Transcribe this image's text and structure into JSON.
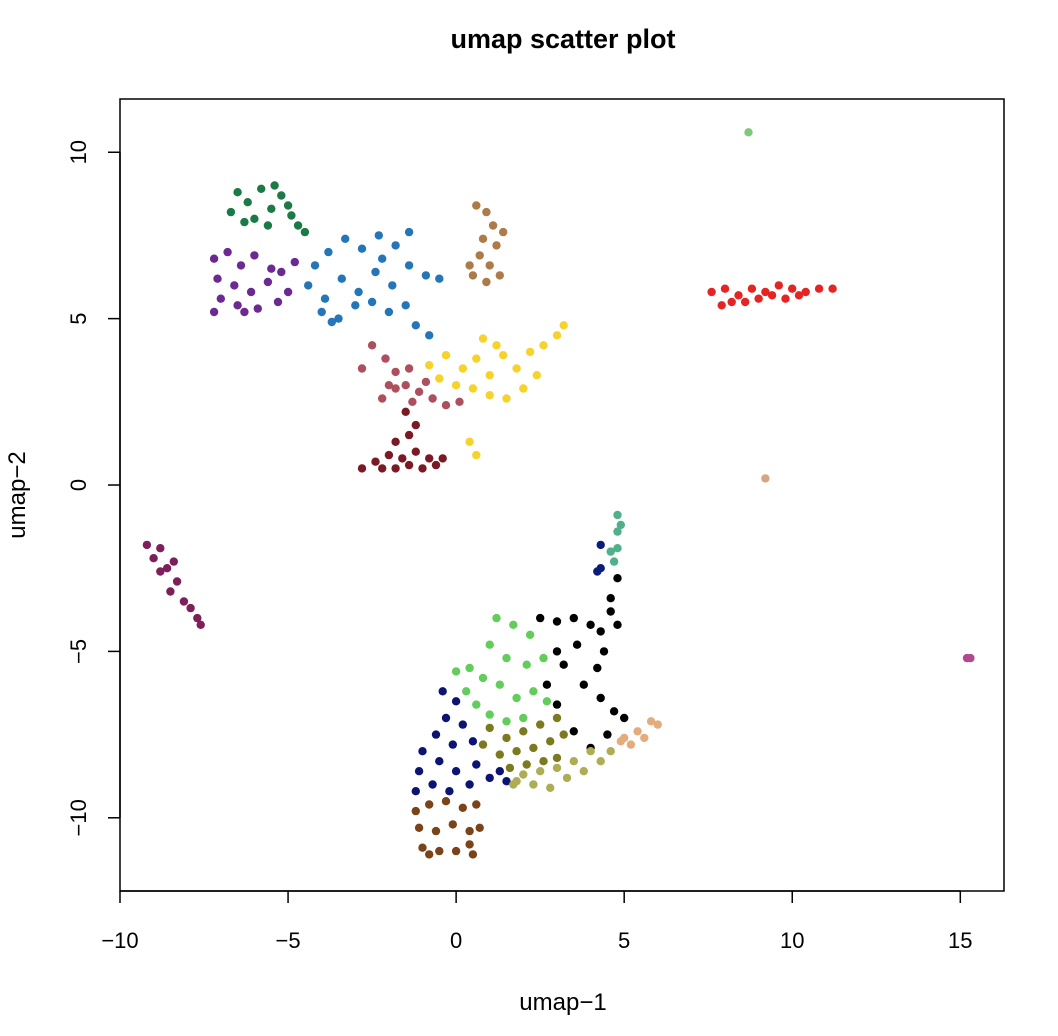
{
  "chart_data": {
    "type": "scatter",
    "title": "umap scatter plot",
    "xlabel": "umap−1",
    "ylabel": "umap−2",
    "xlim": [
      -10,
      16.3
    ],
    "ylim": [
      -12.2,
      11.6
    ],
    "xticks": [
      {
        "value": -10,
        "label": "−10"
      },
      {
        "value": -5,
        "label": "−5"
      },
      {
        "value": 0,
        "label": "0"
      },
      {
        "value": 5,
        "label": "5"
      },
      {
        "value": 10,
        "label": "10"
      },
      {
        "value": 15,
        "label": "15"
      }
    ],
    "yticks": [
      {
        "value": -10,
        "label": "−10"
      },
      {
        "value": -5,
        "label": "−5"
      },
      {
        "value": 0,
        "label": "0"
      },
      {
        "value": 5,
        "label": "5"
      },
      {
        "value": 10,
        "label": "10"
      }
    ],
    "grid": false,
    "legend": "none",
    "clusters": [
      {
        "color": "#1b7a45",
        "points": [
          [
            -6.5,
            8.8
          ],
          [
            -6.2,
            8.5
          ],
          [
            -5.8,
            8.9
          ],
          [
            -5.5,
            8.3
          ],
          [
            -5.2,
            8.7
          ],
          [
            -4.9,
            8.1
          ],
          [
            -6.7,
            8.2
          ],
          [
            -6.0,
            8.0
          ],
          [
            -5.6,
            7.8
          ],
          [
            -5.0,
            8.4
          ],
          [
            -4.7,
            7.8
          ],
          [
            -6.3,
            7.9
          ],
          [
            -5.4,
            9.0
          ],
          [
            -4.5,
            7.6
          ]
        ]
      },
      {
        "color": "#6a2a92",
        "points": [
          [
            -7.2,
            6.8
          ],
          [
            -6.8,
            7.0
          ],
          [
            -6.4,
            6.6
          ],
          [
            -6.0,
            6.9
          ],
          [
            -5.5,
            6.5
          ],
          [
            -7.1,
            6.2
          ],
          [
            -6.6,
            6.0
          ],
          [
            -6.1,
            5.8
          ],
          [
            -5.6,
            6.1
          ],
          [
            -7.0,
            5.6
          ],
          [
            -6.5,
            5.4
          ],
          [
            -5.9,
            5.3
          ],
          [
            -5.3,
            5.5
          ],
          [
            -7.2,
            5.2
          ],
          [
            -6.3,
            5.2
          ],
          [
            -5.2,
            6.4
          ],
          [
            -4.8,
            6.7
          ],
          [
            -5.0,
            5.8
          ]
        ]
      },
      {
        "color": "#2476b8",
        "points": [
          [
            -4.2,
            6.6
          ],
          [
            -3.8,
            7.0
          ],
          [
            -3.3,
            7.4
          ],
          [
            -2.8,
            7.1
          ],
          [
            -2.3,
            7.5
          ],
          [
            -1.8,
            7.2
          ],
          [
            -1.4,
            7.6
          ],
          [
            -4.4,
            6.0
          ],
          [
            -3.9,
            5.6
          ],
          [
            -3.4,
            6.2
          ],
          [
            -2.9,
            5.8
          ],
          [
            -2.4,
            6.4
          ],
          [
            -1.9,
            6.0
          ],
          [
            -1.4,
            6.6
          ],
          [
            -0.9,
            6.3
          ],
          [
            -0.5,
            6.2
          ],
          [
            -4.0,
            5.2
          ],
          [
            -3.5,
            5.0
          ],
          [
            -3.0,
            5.4
          ],
          [
            -2.5,
            5.5
          ],
          [
            -2.0,
            5.2
          ],
          [
            -1.5,
            5.4
          ],
          [
            -1.2,
            4.8
          ],
          [
            -0.8,
            4.5
          ],
          [
            -3.7,
            4.9
          ],
          [
            -2.2,
            6.8
          ]
        ]
      },
      {
        "color": "#ac7b47",
        "points": [
          [
            0.6,
            8.4
          ],
          [
            0.9,
            8.2
          ],
          [
            1.1,
            7.8
          ],
          [
            0.8,
            7.4
          ],
          [
            1.2,
            7.2
          ],
          [
            0.7,
            6.9
          ],
          [
            1.0,
            6.6
          ],
          [
            0.5,
            6.3
          ],
          [
            0.9,
            6.1
          ],
          [
            1.3,
            6.3
          ],
          [
            0.4,
            6.6
          ],
          [
            1.4,
            7.6
          ]
        ]
      },
      {
        "color": "#e52424",
        "points": [
          [
            7.6,
            5.8
          ],
          [
            8.0,
            5.9
          ],
          [
            8.4,
            5.7
          ],
          [
            8.8,
            5.9
          ],
          [
            9.2,
            5.8
          ],
          [
            9.6,
            6.0
          ],
          [
            10.0,
            5.9
          ],
          [
            10.4,
            5.8
          ],
          [
            10.8,
            5.9
          ],
          [
            11.2,
            5.9
          ],
          [
            8.2,
            5.5
          ],
          [
            8.6,
            5.5
          ],
          [
            9.0,
            5.6
          ],
          [
            9.4,
            5.7
          ],
          [
            9.8,
            5.6
          ],
          [
            7.9,
            5.4
          ],
          [
            10.2,
            5.7
          ]
        ]
      },
      {
        "color": "#7fc77b",
        "points": [
          [
            8.7,
            10.6
          ]
        ]
      },
      {
        "color": "#f6d32b",
        "points": [
          [
            -0.8,
            3.6
          ],
          [
            -0.3,
            3.9
          ],
          [
            0.2,
            3.5
          ],
          [
            0.6,
            3.8
          ],
          [
            1.0,
            3.3
          ],
          [
            1.4,
            3.9
          ],
          [
            1.8,
            3.5
          ],
          [
            2.2,
            4.0
          ],
          [
            2.6,
            4.2
          ],
          [
            3.0,
            4.5
          ],
          [
            3.2,
            4.8
          ],
          [
            0.0,
            3.0
          ],
          [
            0.5,
            2.9
          ],
          [
            1.0,
            2.7
          ],
          [
            1.5,
            2.6
          ],
          [
            2.0,
            2.9
          ],
          [
            2.4,
            3.3
          ],
          [
            1.2,
            4.2
          ],
          [
            0.8,
            4.4
          ],
          [
            -0.5,
            3.2
          ],
          [
            0.6,
            0.9
          ],
          [
            0.4,
            1.3
          ]
        ]
      },
      {
        "color": "#ad4f5d",
        "points": [
          [
            -2.5,
            4.2
          ],
          [
            -2.1,
            3.8
          ],
          [
            -1.8,
            3.4
          ],
          [
            -1.5,
            3.0
          ],
          [
            -1.1,
            2.8
          ],
          [
            -0.7,
            2.6
          ],
          [
            -0.3,
            2.4
          ],
          [
            0.1,
            2.5
          ],
          [
            -2.0,
            3.0
          ],
          [
            -1.4,
            3.5
          ],
          [
            -2.8,
            3.5
          ],
          [
            -2.2,
            2.6
          ],
          [
            -1.8,
            2.9
          ],
          [
            -1.3,
            2.5
          ],
          [
            -0.9,
            3.1
          ]
        ]
      },
      {
        "color": "#7b1a25",
        "points": [
          [
            -2.8,
            0.5
          ],
          [
            -2.4,
            0.7
          ],
          [
            -2.0,
            0.9
          ],
          [
            -1.6,
            0.8
          ],
          [
            -1.2,
            1.0
          ],
          [
            -0.8,
            0.8
          ],
          [
            -0.4,
            0.8
          ],
          [
            -2.2,
            0.5
          ],
          [
            -1.8,
            0.5
          ],
          [
            -1.4,
            0.6
          ],
          [
            -1.0,
            0.5
          ],
          [
            -0.6,
            0.6
          ],
          [
            -1.8,
            1.3
          ],
          [
            -1.4,
            1.5
          ],
          [
            -1.5,
            2.2
          ],
          [
            -1.2,
            1.8
          ]
        ]
      },
      {
        "color": "#d8a581",
        "points": [
          [
            9.2,
            0.2
          ]
        ]
      },
      {
        "color": "#7d1f5a",
        "points": [
          [
            -9.2,
            -1.8
          ],
          [
            -9.0,
            -2.2
          ],
          [
            -8.8,
            -2.6
          ],
          [
            -8.6,
            -2.5
          ],
          [
            -8.3,
            -2.9
          ],
          [
            -8.5,
            -3.2
          ],
          [
            -8.1,
            -3.5
          ],
          [
            -7.9,
            -3.7
          ],
          [
            -7.7,
            -4.0
          ],
          [
            -7.6,
            -4.2
          ],
          [
            -8.8,
            -1.9
          ],
          [
            -8.4,
            -2.3
          ]
        ]
      },
      {
        "color": "#4fb089",
        "points": [
          [
            4.8,
            -0.9
          ],
          [
            4.8,
            -1.4
          ],
          [
            4.8,
            -1.9
          ],
          [
            4.7,
            -2.3
          ],
          [
            4.9,
            -1.2
          ],
          [
            4.6,
            -2.0
          ]
        ]
      },
      {
        "color": "#0b1d7a",
        "points": [
          [
            4.3,
            -1.8
          ],
          [
            4.3,
            -2.5
          ],
          [
            4.2,
            -2.6
          ]
        ]
      },
      {
        "color": "#de da7a",
        "points": [
          [
            2.5,
            -4.0
          ],
          [
            3.0,
            -4.1
          ],
          [
            3.5,
            -4.0
          ],
          [
            4.0,
            -4.2
          ],
          [
            4.3,
            -4.4
          ],
          [
            4.4,
            -5.0
          ],
          [
            4.2,
            -5.5
          ],
          [
            3.8,
            -6.0
          ],
          [
            4.3,
            -6.4
          ],
          [
            4.7,
            -6.8
          ],
          [
            5.0,
            -7.0
          ],
          [
            4.5,
            -7.5
          ],
          [
            4.0,
            -7.9
          ],
          [
            3.5,
            -7.4
          ],
          [
            3.0,
            -6.6
          ],
          [
            2.7,
            -6.0
          ],
          [
            3.2,
            -5.4
          ],
          [
            3.6,
            -4.8
          ],
          [
            4.6,
            -3.8
          ],
          [
            4.8,
            -2.8
          ],
          [
            4.6,
            -3.4
          ],
          [
            3.0,
            -5.0
          ],
          [
            4.8,
            -4.2
          ]
        ]
      },
      {
        "color": "#62cd5b",
        "points": [
          [
            1.2,
            -4.0
          ],
          [
            1.7,
            -4.2
          ],
          [
            2.2,
            -4.5
          ],
          [
            1.0,
            -4.8
          ],
          [
            1.5,
            -5.2
          ],
          [
            2.1,
            -5.4
          ],
          [
            2.6,
            -5.2
          ],
          [
            0.4,
            -5.5
          ],
          [
            0.8,
            -5.8
          ],
          [
            1.3,
            -6.0
          ],
          [
            1.8,
            -6.4
          ],
          [
            2.3,
            -6.2
          ],
          [
            2.7,
            -6.5
          ],
          [
            0.0,
            -5.6
          ],
          [
            0.6,
            -6.6
          ],
          [
            1.0,
            -6.9
          ],
          [
            1.5,
            -7.1
          ],
          [
            2.0,
            -7.0
          ],
          [
            0.3,
            -6.2
          ]
        ]
      },
      {
        "color": "#e2ac7d",
        "points": [
          [
            5.0,
            -7.6
          ],
          [
            5.4,
            -7.4
          ],
          [
            5.8,
            -7.1
          ],
          [
            6.0,
            -7.2
          ],
          [
            5.6,
            -7.6
          ],
          [
            5.2,
            -7.8
          ],
          [
            4.9,
            -7.7
          ]
        ]
      },
      {
        "color": "#0b1472",
        "points": [
          [
            -0.4,
            -6.2
          ],
          [
            0.0,
            -6.5
          ],
          [
            -0.3,
            -7.0
          ],
          [
            0.2,
            -7.2
          ],
          [
            -0.6,
            -7.5
          ],
          [
            -0.1,
            -7.8
          ],
          [
            0.5,
            -7.7
          ],
          [
            -1.0,
            -8.0
          ],
          [
            -0.5,
            -8.3
          ],
          [
            0.0,
            -8.6
          ],
          [
            0.6,
            -8.4
          ],
          [
            1.0,
            -8.8
          ],
          [
            1.3,
            -8.6
          ],
          [
            -1.1,
            -8.6
          ],
          [
            -1.2,
            -9.2
          ],
          [
            -0.7,
            -9.0
          ],
          [
            -0.2,
            -9.2
          ],
          [
            0.4,
            -9.0
          ],
          [
            1.5,
            -8.9
          ]
        ]
      },
      {
        "color": "#7c7a1e",
        "points": [
          [
            1.0,
            -7.3
          ],
          [
            1.5,
            -7.6
          ],
          [
            2.0,
            -7.4
          ],
          [
            2.5,
            -7.2
          ],
          [
            3.0,
            -7.0
          ],
          [
            0.8,
            -7.8
          ],
          [
            1.3,
            -8.1
          ],
          [
            1.8,
            -8.0
          ],
          [
            2.3,
            -7.9
          ],
          [
            2.8,
            -7.7
          ],
          [
            3.2,
            -7.5
          ],
          [
            1.6,
            -8.5
          ],
          [
            2.1,
            -8.4
          ],
          [
            2.6,
            -8.3
          ],
          [
            3.0,
            -8.2
          ]
        ]
      },
      {
        "color": "#aead54",
        "points": [
          [
            1.8,
            -8.9
          ],
          [
            2.3,
            -9.0
          ],
          [
            2.8,
            -9.1
          ],
          [
            3.3,
            -8.8
          ],
          [
            3.8,
            -8.6
          ],
          [
            4.3,
            -8.3
          ],
          [
            4.6,
            -8.0
          ],
          [
            2.5,
            -8.6
          ],
          [
            3.0,
            -8.5
          ],
          [
            3.5,
            -8.3
          ],
          [
            4.0,
            -8.0
          ],
          [
            1.7,
            -9.0
          ],
          [
            2.0,
            -8.7
          ]
        ]
      },
      {
        "color": "#7a4418",
        "points": [
          [
            -1.2,
            -9.8
          ],
          [
            -0.8,
            -9.6
          ],
          [
            -0.3,
            -9.5
          ],
          [
            0.2,
            -9.7
          ],
          [
            0.6,
            -9.6
          ],
          [
            -1.1,
            -10.3
          ],
          [
            -0.6,
            -10.4
          ],
          [
            -0.1,
            -10.2
          ],
          [
            0.4,
            -10.4
          ],
          [
            0.7,
            -10.3
          ],
          [
            -1.0,
            -10.9
          ],
          [
            -0.5,
            -11.0
          ],
          [
            0.0,
            -11.0
          ],
          [
            0.5,
            -11.1
          ],
          [
            -0.8,
            -11.1
          ],
          [
            0.4,
            -10.8
          ]
        ]
      },
      {
        "color": "#b04a8c",
        "points": [
          [
            15.2,
            -5.2
          ],
          [
            15.3,
            -5.2
          ]
        ]
      }
    ]
  }
}
